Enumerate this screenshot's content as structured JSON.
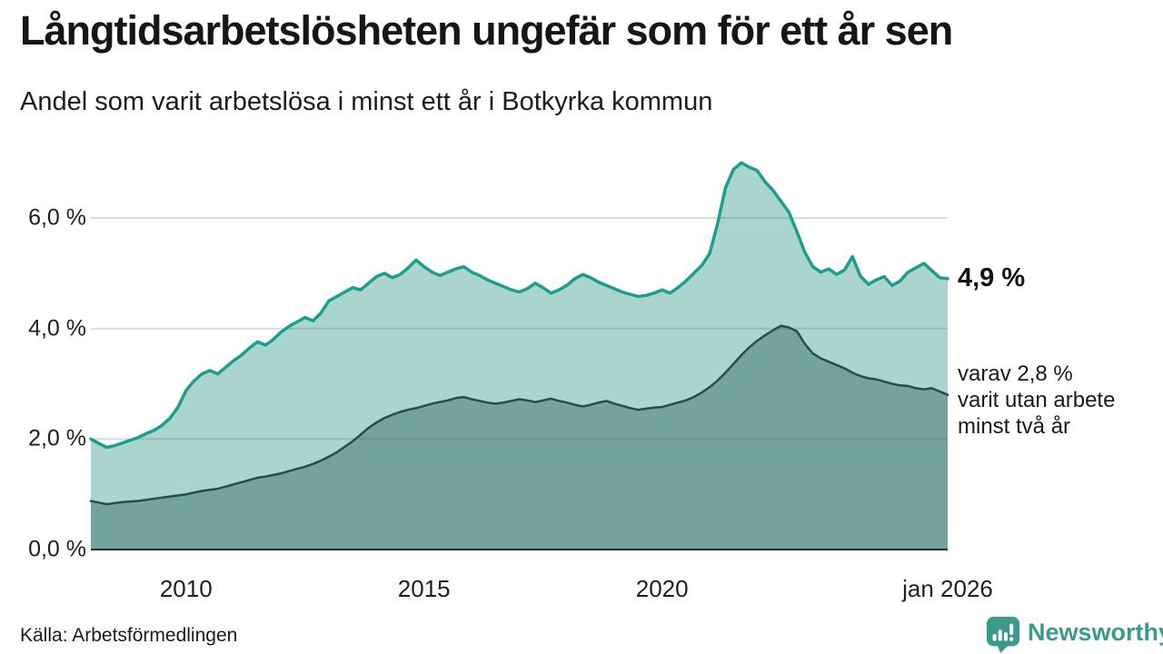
{
  "header": {
    "title": "Långtidsarbetslösheten ungefär som för ett år sen",
    "subtitle": "Andel som varit arbetslösa i minst ett år i Botkyrka kommun"
  },
  "footer": {
    "source": "Källa: Arbetsförmedlingen",
    "brand": "Newsworthy"
  },
  "colors": {
    "series1_line": "#1b9e8e",
    "series1_fill": "#a9d5ce",
    "series2_line": "#2b4a50",
    "series2_fill": "#74a29c",
    "grid": "#dcdcdc",
    "axis": "#2b2b2b",
    "brand_teal": "#3a9a8c"
  },
  "chart_data": {
    "type": "area",
    "title": "Långtidsarbetslösheten ungefär som för ett år sen",
    "subtitle": "Andel som varit arbetslösa i minst ett år i Botkyrka kommun",
    "source": "Källa: Arbetsförmedlingen",
    "x_start": 2008.0,
    "x_end": 2026.0,
    "ylim": [
      0,
      7.5
    ],
    "grid": true,
    "legend": "none",
    "yticks": [
      {
        "v": 0,
        "label": "0,0 %"
      },
      {
        "v": 2,
        "label": "2,0 %"
      },
      {
        "v": 4,
        "label": "4,0 %"
      },
      {
        "v": 6,
        "label": "6,0 %"
      }
    ],
    "xticks": [
      {
        "v": 2010,
        "label": "2010"
      },
      {
        "v": 2015,
        "label": "2015"
      },
      {
        "v": 2020,
        "label": "2020"
      },
      {
        "v": 2026,
        "label": "jan 2026"
      }
    ],
    "annotations": {
      "primary": "4,9 %",
      "secondary": [
        "varav 2,8 %",
        "varit utan arbete",
        "minst två år"
      ]
    },
    "series": [
      {
        "name": "arbetslösa minst ett år",
        "end_value": 4.9,
        "line_color": "#1b9e8e",
        "fill_color": "#a9d5ce",
        "line_width": 3.5,
        "values": [
          2.0,
          1.92,
          1.85,
          1.88,
          1.93,
          1.98,
          2.03,
          2.1,
          2.16,
          2.25,
          2.38,
          2.58,
          2.88,
          3.05,
          3.18,
          3.24,
          3.18,
          3.3,
          3.42,
          3.52,
          3.65,
          3.76,
          3.7,
          3.8,
          3.94,
          4.04,
          4.12,
          4.2,
          4.14,
          4.28,
          4.5,
          4.58,
          4.66,
          4.74,
          4.7,
          4.82,
          4.94,
          5.0,
          4.92,
          4.98,
          5.1,
          5.24,
          5.12,
          5.02,
          4.96,
          5.02,
          5.08,
          5.12,
          5.02,
          4.96,
          4.88,
          4.82,
          4.76,
          4.7,
          4.66,
          4.72,
          4.82,
          4.74,
          4.64,
          4.7,
          4.78,
          4.9,
          4.98,
          4.92,
          4.84,
          4.78,
          4.72,
          4.66,
          4.62,
          4.58,
          4.6,
          4.64,
          4.7,
          4.64,
          4.74,
          4.86,
          5.0,
          5.14,
          5.36,
          5.9,
          6.55,
          6.88,
          7.0,
          6.92,
          6.86,
          6.65,
          6.5,
          6.3,
          6.1,
          5.75,
          5.38,
          5.12,
          5.02,
          5.08,
          4.98,
          5.06,
          5.3,
          4.95,
          4.8,
          4.88,
          4.94,
          4.78,
          4.86,
          5.02,
          5.1,
          5.18,
          5.05,
          4.92,
          4.9
        ]
      },
      {
        "name": "utan arbete minst två år",
        "end_value": 2.8,
        "line_color": "#2b4a50",
        "fill_color": "#74a29c",
        "line_width": 2.5,
        "values": [
          0.88,
          0.85,
          0.82,
          0.84,
          0.86,
          0.87,
          0.88,
          0.9,
          0.92,
          0.94,
          0.96,
          0.98,
          1.0,
          1.03,
          1.06,
          1.08,
          1.1,
          1.14,
          1.18,
          1.22,
          1.26,
          1.3,
          1.32,
          1.35,
          1.38,
          1.42,
          1.46,
          1.5,
          1.55,
          1.61,
          1.68,
          1.76,
          1.86,
          1.96,
          2.08,
          2.2,
          2.3,
          2.38,
          2.44,
          2.49,
          2.53,
          2.56,
          2.6,
          2.64,
          2.67,
          2.7,
          2.74,
          2.76,
          2.72,
          2.69,
          2.66,
          2.64,
          2.66,
          2.69,
          2.72,
          2.7,
          2.67,
          2.7,
          2.73,
          2.69,
          2.66,
          2.62,
          2.59,
          2.62,
          2.66,
          2.69,
          2.64,
          2.6,
          2.56,
          2.53,
          2.55,
          2.57,
          2.58,
          2.62,
          2.66,
          2.7,
          2.76,
          2.84,
          2.94,
          3.06,
          3.2,
          3.36,
          3.52,
          3.66,
          3.78,
          3.88,
          3.97,
          4.05,
          4.02,
          3.95,
          3.72,
          3.55,
          3.46,
          3.4,
          3.34,
          3.28,
          3.2,
          3.14,
          3.1,
          3.08,
          3.04,
          3.0,
          2.97,
          2.96,
          2.92,
          2.9,
          2.92,
          2.86,
          2.8
        ]
      }
    ]
  }
}
